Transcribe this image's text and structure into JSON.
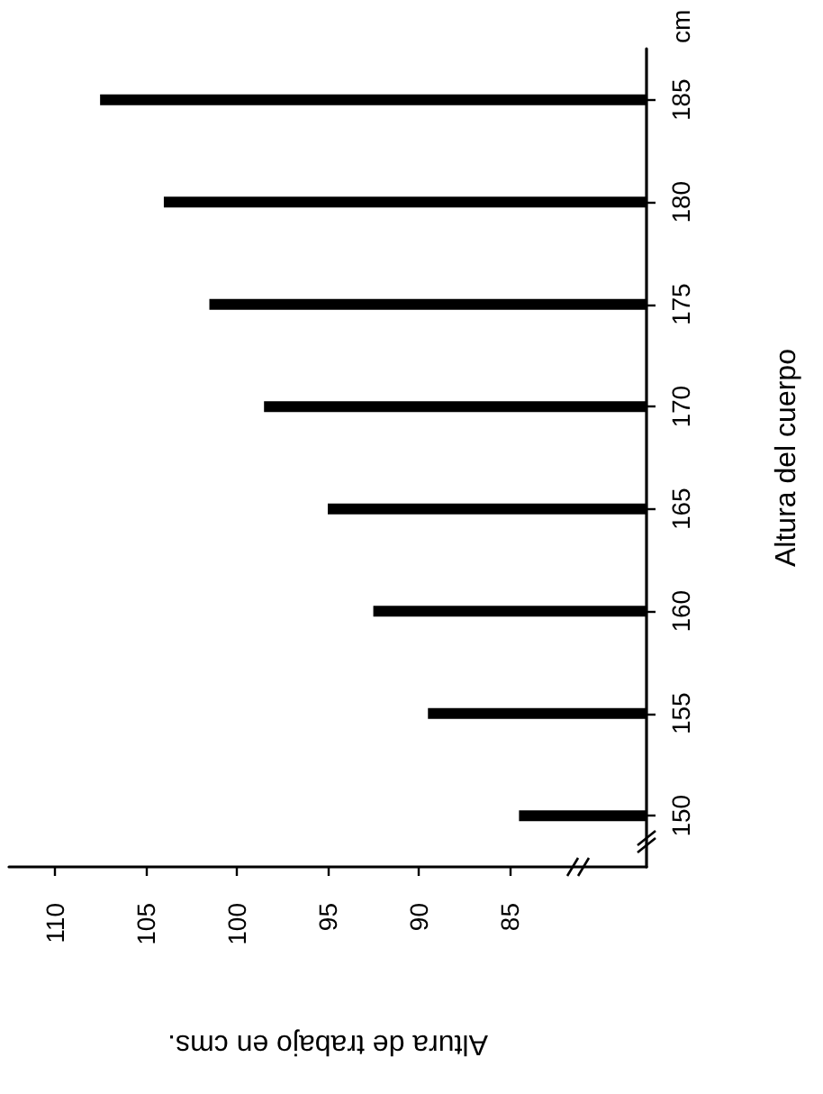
{
  "chart_data": {
    "type": "bar",
    "orientation": "horizontal",
    "categories": [
      "185",
      "180",
      "175",
      "170",
      "165",
      "160",
      "155",
      "150"
    ],
    "values": [
      107.5,
      104,
      101.5,
      98.5,
      95,
      92.5,
      89.5,
      84.5
    ],
    "color": "#000000",
    "xlabel": "Altura de trabajo en cms.",
    "ylabel": "Altura del cuerpo",
    "xlim": [
      112.5,
      77.5
    ],
    "xticks": [
      85,
      90,
      95,
      100,
      105,
      110
    ],
    "annotations": [
      "cm"
    ]
  }
}
